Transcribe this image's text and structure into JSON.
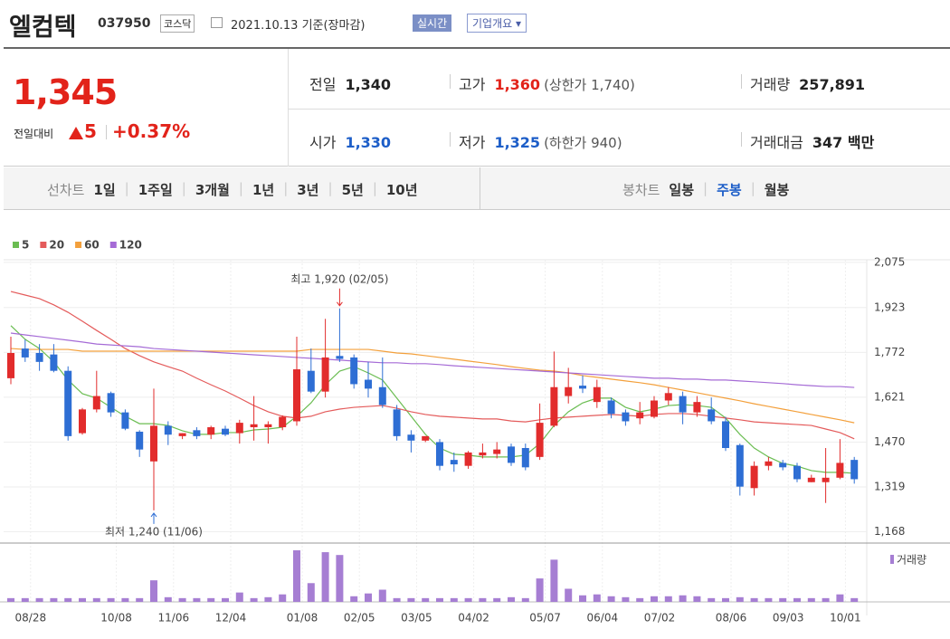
{
  "header": {
    "name": "엘컴텍",
    "code": "037950",
    "market": "코스닥",
    "date": "2021.10.13 기준(장마감)",
    "buttons": [
      "실시간",
      "기업개요"
    ]
  },
  "quote": {
    "price": "1,345",
    "change_label": "전일대비",
    "change": "5",
    "change_pct": "+0.37%",
    "stats": [
      {
        "label": "전일",
        "value": "1,340"
      },
      {
        "label": "고가",
        "value": "1,360",
        "note": "(상한가 1,740)"
      },
      {
        "label": "거래량",
        "value": "257,891"
      },
      {
        "label": "시가",
        "value": "1,330"
      },
      {
        "label": "저가",
        "value": "1,325",
        "note": "(하한가 940)"
      },
      {
        "label": "거래대금",
        "value": "347 백만"
      }
    ]
  },
  "tabs": {
    "line_label": "선차트",
    "line_items": [
      "1일",
      "1주일",
      "3개월",
      "1년",
      "3년",
      "5년",
      "10년"
    ],
    "candle_label": "봉차트",
    "candle_items": [
      "일봉",
      "주봉",
      "월봉"
    ]
  },
  "chart_data": {
    "type": "candlestick",
    "grid": true,
    "categories": [
      null,
      "08/28",
      null,
      null,
      null,
      null,
      null,
      "10/08",
      null,
      null,
      null,
      "11/06",
      null,
      null,
      null,
      "12/04",
      null,
      null,
      null,
      null,
      "01/08",
      null,
      null,
      null,
      "02/05",
      null,
      null,
      null,
      "03/05",
      null,
      null,
      null,
      "04/02",
      null,
      null,
      null,
      null,
      "05/07",
      null,
      null,
      null,
      "06/04",
      null,
      null,
      null,
      "07/02",
      null,
      null,
      null,
      null,
      "08/06",
      null,
      null,
      null,
      "09/03",
      null,
      null,
      null,
      "10/01",
      null
    ],
    "open": [
      1685,
      1785,
      1770,
      1765,
      1710,
      1500,
      1580,
      1635,
      1570,
      1505,
      1405,
      1525,
      1490,
      1510,
      1495,
      1515,
      1500,
      1520,
      1520,
      1520,
      1540,
      1710,
      1640,
      1760,
      1755,
      1680,
      1655,
      1580,
      1495,
      1475,
      1470,
      1410,
      1390,
      1425,
      1430,
      1455,
      1450,
      1420,
      1525,
      1625,
      1660,
      1605,
      1610,
      1570,
      1550,
      1555,
      1610,
      1625,
      1570,
      1580,
      1540,
      1460,
      1315,
      1390,
      1400,
      1390,
      1335,
      1335,
      1350,
      1410
    ],
    "high": [
      1825,
      1815,
      1800,
      1800,
      1725,
      1585,
      1710,
      1640,
      1580,
      1510,
      1650,
      1540,
      1500,
      1520,
      1525,
      1525,
      1545,
      1625,
      1540,
      1560,
      1825,
      1785,
      1885,
      1920,
      1765,
      1740,
      1755,
      1595,
      1510,
      1490,
      1480,
      1435,
      1440,
      1465,
      1470,
      1465,
      1465,
      1600,
      1775,
      1720,
      1695,
      1680,
      1620,
      1580,
      1605,
      1625,
      1655,
      1640,
      1625,
      1620,
      1555,
      1465,
      1405,
      1420,
      1410,
      1400,
      1360,
      1450,
      1480,
      1420
    ],
    "low": [
      1665,
      1740,
      1710,
      1705,
      1475,
      1495,
      1570,
      1555,
      1510,
      1420,
      1240,
      1460,
      1480,
      1480,
      1480,
      1490,
      1465,
      1475,
      1465,
      1510,
      1525,
      1635,
      1620,
      1740,
      1650,
      1620,
      1585,
      1475,
      1435,
      1470,
      1375,
      1370,
      1380,
      1415,
      1415,
      1390,
      1375,
      1410,
      1520,
      1600,
      1635,
      1585,
      1550,
      1525,
      1530,
      1550,
      1595,
      1530,
      1555,
      1530,
      1440,
      1290,
      1290,
      1375,
      1375,
      1335,
      1335,
      1265,
      1345,
      1330
    ],
    "close": [
      1770,
      1755,
      1740,
      1710,
      1490,
      1580,
      1625,
      1570,
      1515,
      1445,
      1525,
      1495,
      1500,
      1490,
      1520,
      1495,
      1535,
      1530,
      1530,
      1555,
      1715,
      1640,
      1755,
      1750,
      1665,
      1650,
      1595,
      1490,
      1475,
      1490,
      1390,
      1395,
      1435,
      1435,
      1445,
      1400,
      1385,
      1535,
      1655,
      1655,
      1650,
      1655,
      1565,
      1540,
      1570,
      1610,
      1635,
      1570,
      1605,
      1540,
      1450,
      1320,
      1390,
      1405,
      1385,
      1345,
      1350,
      1350,
      1400,
      1345
    ],
    "up_color": "#e22c2c",
    "down_color": "#2e6ed4",
    "series": [
      {
        "name": "5",
        "color": "#6bbd52",
        "values": [
          1862,
          1816,
          1785,
          1740,
          1679,
          1633,
          1618,
          1587,
          1557,
          1532,
          1532,
          1526,
          1508,
          1496,
          1496,
          1502,
          1502,
          1511,
          1514,
          1520,
          1557,
          1602,
          1663,
          1709,
          1724,
          1703,
          1679,
          1618,
          1557,
          1496,
          1450,
          1429,
          1426,
          1420,
          1420,
          1420,
          1426,
          1465,
          1526,
          1572,
          1602,
          1618,
          1618,
          1587,
          1572,
          1581,
          1593,
          1596,
          1593,
          1587,
          1551,
          1496,
          1450,
          1420,
          1398,
          1389,
          1374,
          1368,
          1368,
          1365
        ]
      },
      {
        "name": "20",
        "color": "#e45b5b",
        "values": [
          1977,
          1965,
          1953,
          1932,
          1907,
          1877,
          1846,
          1816,
          1785,
          1761,
          1740,
          1724,
          1709,
          1685,
          1663,
          1642,
          1618,
          1593,
          1572,
          1557,
          1551,
          1557,
          1572,
          1581,
          1587,
          1590,
          1593,
          1584,
          1572,
          1563,
          1557,
          1554,
          1551,
          1548,
          1548,
          1541,
          1538,
          1545,
          1551,
          1554,
          1557,
          1560,
          1563,
          1560,
          1557,
          1563,
          1566,
          1566,
          1563,
          1557,
          1551,
          1545,
          1538,
          1535,
          1532,
          1529,
          1526,
          1514,
          1502,
          1481
        ]
      },
      {
        "name": "60",
        "color": "#f3a03c",
        "values": [
          1785,
          1782,
          1782,
          1782,
          1782,
          1776,
          1776,
          1776,
          1776,
          1776,
          1776,
          1776,
          1776,
          1776,
          1776,
          1776,
          1776,
          1776,
          1776,
          1776,
          1776,
          1782,
          1782,
          1782,
          1782,
          1782,
          1776,
          1770,
          1767,
          1761,
          1755,
          1749,
          1743,
          1737,
          1731,
          1724,
          1718,
          1712,
          1709,
          1703,
          1694,
          1688,
          1682,
          1676,
          1670,
          1663,
          1654,
          1645,
          1636,
          1627,
          1618,
          1609,
          1599,
          1590,
          1581,
          1572,
          1563,
          1554,
          1545,
          1535
        ]
      },
      {
        "name": "120",
        "color": "#a56bd6",
        "values": [
          1837,
          1831,
          1825,
          1819,
          1813,
          1807,
          1800,
          1797,
          1794,
          1791,
          1785,
          1782,
          1779,
          1776,
          1773,
          1770,
          1767,
          1764,
          1761,
          1758,
          1755,
          1752,
          1749,
          1746,
          1743,
          1740,
          1737,
          1737,
          1734,
          1734,
          1731,
          1727,
          1724,
          1721,
          1718,
          1715,
          1712,
          1709,
          1706,
          1703,
          1700,
          1697,
          1694,
          1691,
          1688,
          1685,
          1685,
          1682,
          1682,
          1679,
          1679,
          1676,
          1673,
          1670,
          1667,
          1663,
          1660,
          1657,
          1657,
          1654
        ]
      }
    ],
    "volume": {
      "name": "거래량",
      "color": "#a67ed3",
      "values": [
        4,
        4,
        4,
        4,
        4,
        4,
        4,
        4,
        4,
        4,
        23,
        5,
        4,
        4,
        4,
        4,
        10,
        4,
        5,
        8,
        55,
        20,
        53,
        50,
        6,
        9,
        13,
        4,
        4,
        4,
        4,
        4,
        4,
        4,
        4,
        5,
        4,
        25,
        45,
        14,
        7,
        8,
        6,
        5,
        4,
        6,
        6,
        7,
        6,
        4,
        4,
        5,
        4,
        4,
        4,
        4,
        4,
        4,
        8,
        4
      ]
    },
    "ylim": [
      1130,
      2090
    ],
    "yticks": [
      {
        "value": 2075,
        "label": "2,075"
      },
      {
        "value": 1923,
        "label": "1,923"
      },
      {
        "value": 1772,
        "label": "1,772"
      },
      {
        "value": 1621,
        "label": "1,621"
      },
      {
        "value": 1470,
        "label": "1,470"
      },
      {
        "value": 1319,
        "label": "1,319"
      },
      {
        "value": 1168,
        "label": "1,168"
      }
    ],
    "annotations": {
      "high": "최고 1,920 (02/05)",
      "low": "최저 1,240 (11/06)"
    }
  }
}
